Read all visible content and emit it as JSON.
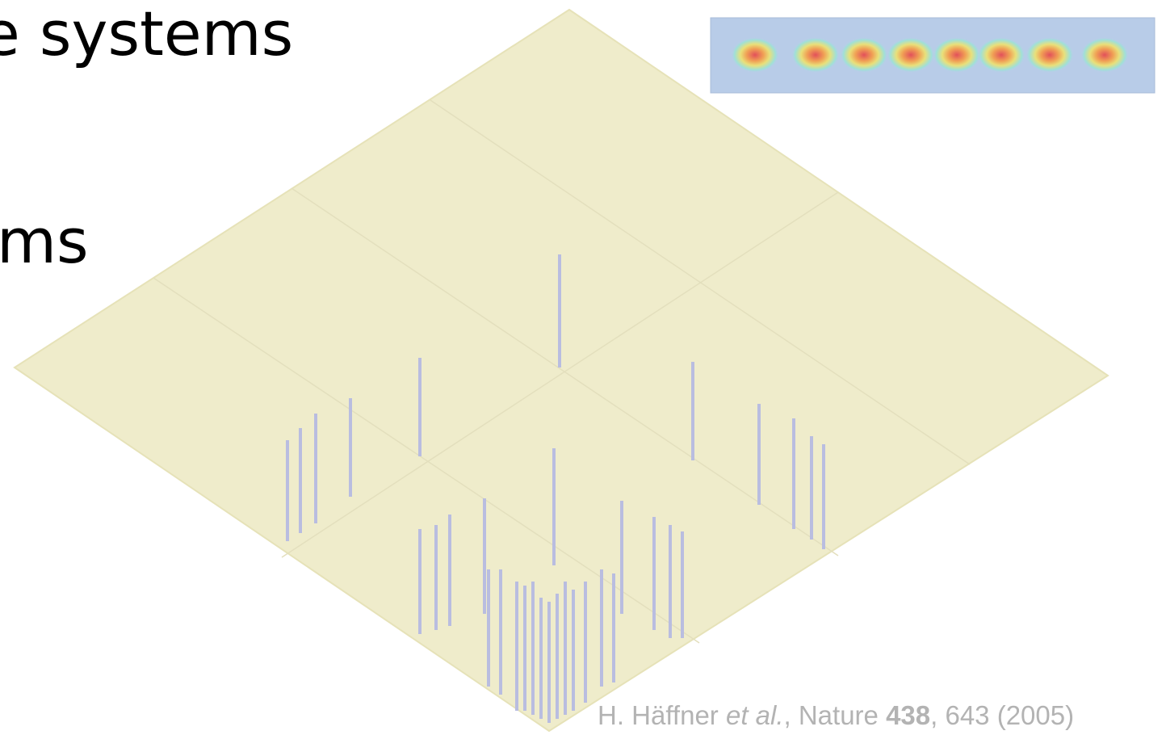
{
  "heading": {
    "line1": "e systems",
    "line2": "ms"
  },
  "citation": {
    "authors": "H. Häffner ",
    "etal": "et al.",
    "journal": ", Nature ",
    "volume": "438",
    "rest": ", 643 (2005)"
  }
}
